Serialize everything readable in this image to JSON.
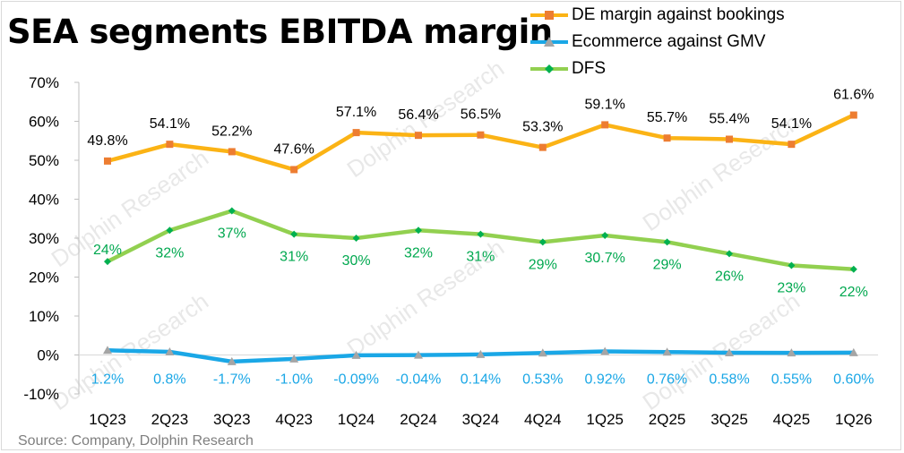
{
  "title": "SEA segments EBITDA margin",
  "source": "Source: Company, Dolphin Research",
  "watermark": "Dolphin Research",
  "colors": {
    "de": "#fbb315",
    "de_marker": "#ed7d31",
    "ecommerce": "#1aa7e6",
    "ecommerce_marker": "#a5a5a5",
    "dfs": "#92d050",
    "dfs_marker": "#00b050",
    "dfs_label": "#00a84f",
    "ecommerce_label": "#1aa7e6"
  },
  "chart_data": {
    "type": "line",
    "x": [
      "1Q23",
      "2Q23",
      "3Q23",
      "4Q23",
      "1Q24",
      "2Q24",
      "3Q24",
      "4Q24",
      "1Q25",
      "2Q25",
      "3Q25",
      "4Q25",
      "1Q26"
    ],
    "ylim": [
      -10,
      70
    ],
    "yticks": [
      "-10%",
      "0%",
      "10%",
      "20%",
      "30%",
      "40%",
      "50%",
      "60%",
      "70%"
    ],
    "ytick_values": [
      -10,
      0,
      10,
      20,
      30,
      40,
      50,
      60,
      70
    ],
    "grid": false,
    "legend_position": "top-right",
    "series": [
      {
        "name": "DE margin against bookings",
        "values": [
          49.8,
          54.1,
          52.2,
          47.6,
          57.1,
          56.4,
          56.5,
          53.3,
          59.1,
          55.7,
          55.4,
          54.1,
          61.6
        ],
        "labels": [
          "49.8%",
          "54.1%",
          "52.2%",
          "47.6%",
          "57.1%",
          "56.4%",
          "56.5%",
          "53.3%",
          "59.1%",
          "55.7%",
          "55.4%",
          "54.1%",
          "61.6%"
        ]
      },
      {
        "name": "Ecommerce against GMV",
        "values": [
          1.2,
          0.8,
          -1.7,
          -1.0,
          -0.09,
          -0.04,
          0.14,
          0.53,
          0.92,
          0.76,
          0.58,
          0.55,
          0.6
        ],
        "labels": [
          "1.2%",
          "0.8%",
          "-1.7%",
          "-1.0%",
          "-0.09%",
          "-0.04%",
          "0.14%",
          "0.53%",
          "0.92%",
          "0.76%",
          "0.58%",
          "0.55%",
          "0.60%"
        ]
      },
      {
        "name": "DFS",
        "values": [
          24,
          32,
          37,
          31,
          30,
          32,
          31,
          29,
          30.7,
          29,
          26,
          23,
          22
        ],
        "labels": [
          "24%",
          "32%",
          "37%",
          "31%",
          "30%",
          "32%",
          "31%",
          "29%",
          "30.7%",
          "29%",
          "26%",
          "23%",
          "22%"
        ]
      }
    ]
  }
}
